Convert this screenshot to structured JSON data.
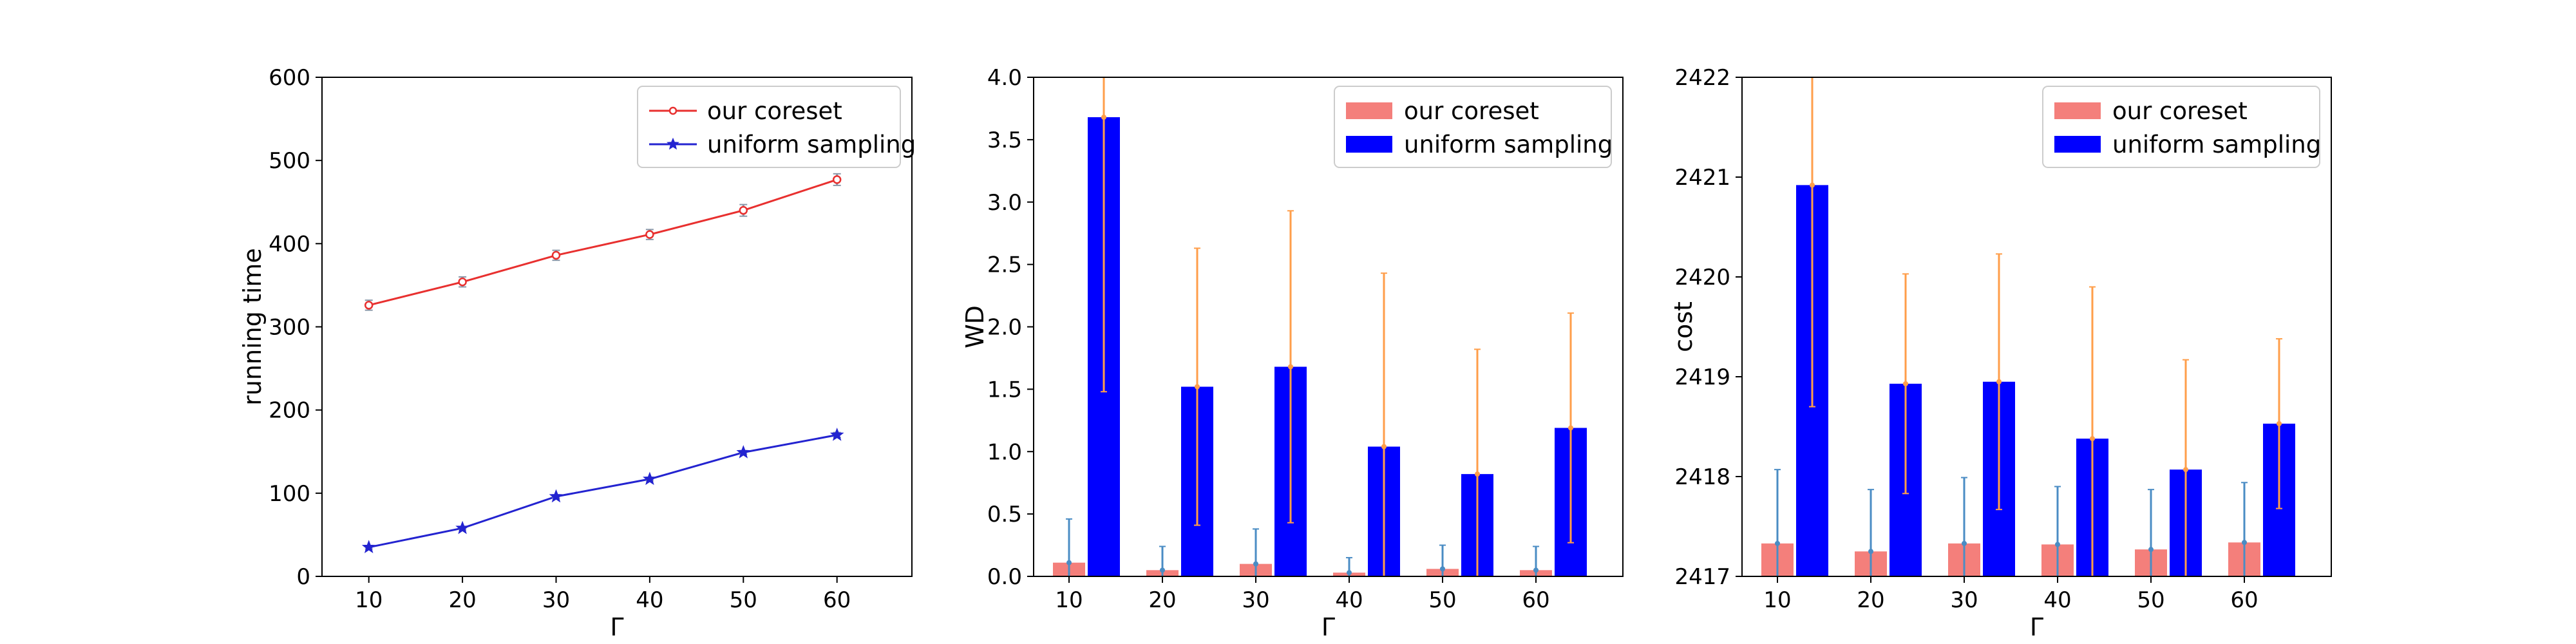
{
  "chart_data": [
    {
      "type": "line",
      "xlabel": "Γ",
      "ylabel": "running time",
      "x": [
        10,
        20,
        30,
        40,
        50,
        60
      ],
      "xticks": [
        10,
        20,
        30,
        40,
        50,
        60
      ],
      "xlim": [
        5,
        68
      ],
      "ylim": [
        0,
        600
      ],
      "yticks": [
        0,
        100,
        200,
        300,
        400,
        500,
        600
      ],
      "legend_position": "top-right",
      "grid": false,
      "series": [
        {
          "name": "our coreset",
          "marker": "circle",
          "color": "#e8302f",
          "error_color": "#8a97a8",
          "values": [
            326,
            354,
            386,
            411,
            440,
            477
          ],
          "errors": [
            6,
            6,
            6,
            6,
            7,
            7
          ]
        },
        {
          "name": "uniform sampling",
          "marker": "star",
          "color": "#2323d0",
          "error_color": "#8a97a8",
          "values": [
            35,
            58,
            96,
            117,
            149,
            170
          ],
          "errors": [
            2,
            2,
            2,
            2,
            2,
            3
          ]
        }
      ]
    },
    {
      "type": "bar",
      "xlabel": "Γ",
      "ylabel": "WD",
      "categories": [
        "10",
        "20",
        "30",
        "40",
        "50",
        "60"
      ],
      "ylim": [
        0,
        4
      ],
      "yticks": [
        "0.0",
        "0.5",
        "1.0",
        "1.5",
        "2.0",
        "2.5",
        "3.0",
        "3.5",
        "4.0"
      ],
      "legend_position": "top-right",
      "grid": false,
      "series": [
        {
          "name": "our coreset",
          "color": "#f47f7b",
          "error_color": "#4a8cc4",
          "values": [
            0.11,
            0.05,
            0.1,
            0.03,
            0.06,
            0.05
          ],
          "errors": [
            0.35,
            0.19,
            0.28,
            0.12,
            0.19,
            0.19
          ]
        },
        {
          "name": "uniform sampling",
          "color": "#0000ff",
          "error_color": "#ff9e4a",
          "values": [
            3.68,
            1.52,
            1.68,
            1.04,
            0.82,
            1.19
          ],
          "errors": [
            2.2,
            1.11,
            1.25,
            1.39,
            1.0,
            0.92
          ]
        }
      ]
    },
    {
      "type": "bar",
      "xlabel": "Γ",
      "ylabel": "cost",
      "categories": [
        "10",
        "20",
        "30",
        "40",
        "50",
        "60"
      ],
      "ylim": [
        2417,
        2422
      ],
      "yticks": [
        "2417",
        "2418",
        "2419",
        "2420",
        "2421",
        "2422"
      ],
      "legend_position": "top-right",
      "grid": false,
      "series": [
        {
          "name": "our coreset",
          "color": "#f47f7b",
          "error_color": "#4a8cc4",
          "values": [
            2417.33,
            2417.25,
            2417.33,
            2417.32,
            2417.27,
            2417.34
          ],
          "errors": [
            0.74,
            0.62,
            0.66,
            0.58,
            0.6,
            0.6
          ]
        },
        {
          "name": "uniform sampling",
          "color": "#0000ff",
          "error_color": "#ff9e4a",
          "values": [
            2420.92,
            2418.93,
            2418.95,
            2418.38,
            2418.07,
            2418.53
          ],
          "errors": [
            2.22,
            1.1,
            1.28,
            1.52,
            1.1,
            0.85
          ]
        }
      ]
    }
  ]
}
